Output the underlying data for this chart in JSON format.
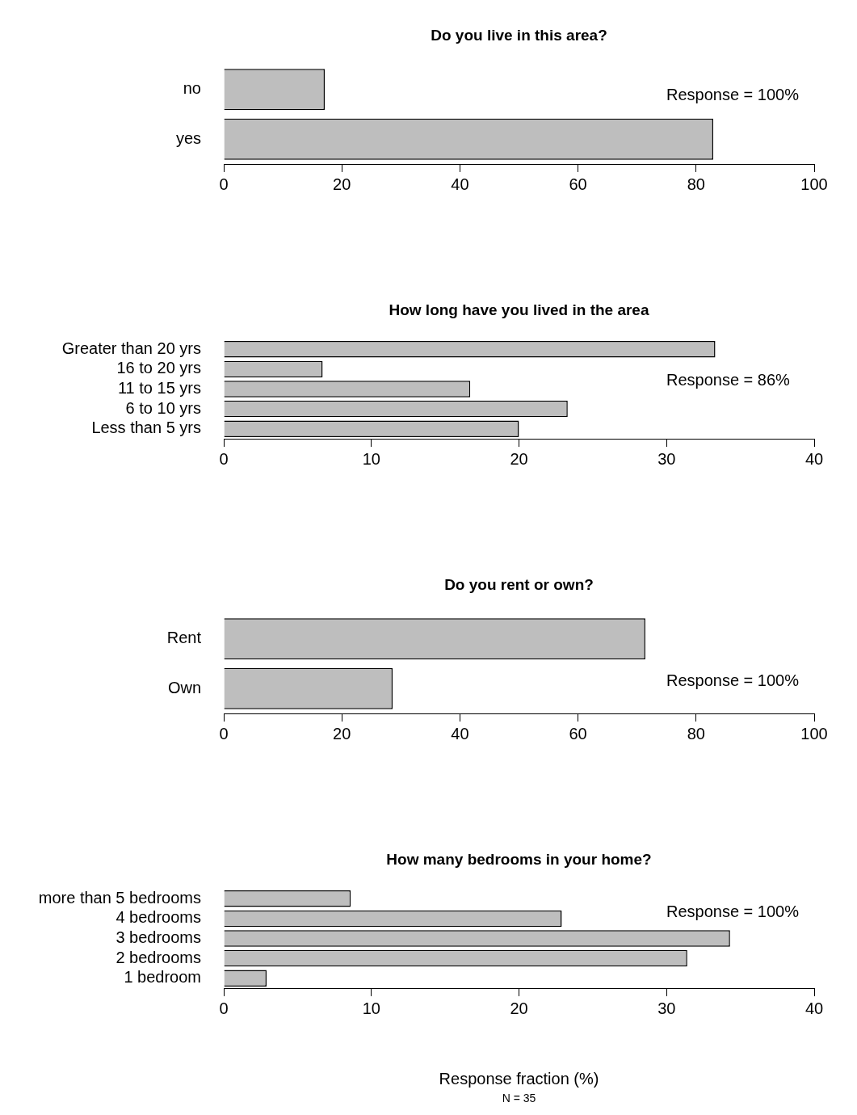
{
  "chart_data": [
    {
      "type": "bar",
      "orientation": "horizontal",
      "title": "Do you live in this area?",
      "categories": [
        "no",
        "yes"
      ],
      "values": [
        17.1,
        82.9
      ],
      "color": "#bebebe",
      "xlim": [
        0,
        100
      ],
      "xticks": [
        0,
        20,
        40,
        60,
        80,
        100
      ],
      "annotations": [
        "Response = 100%"
      ]
    },
    {
      "type": "bar",
      "orientation": "horizontal",
      "title": "How long have you lived in the area",
      "categories": [
        "Greater than 20 yrs",
        "16 to 20 yrs",
        "11 to 15 yrs",
        "6 to 10 yrs",
        "Less than 5 yrs"
      ],
      "values": [
        33.3,
        6.7,
        16.7,
        23.3,
        20.0
      ],
      "color": "#bebebe",
      "xlim": [
        0,
        40
      ],
      "xticks": [
        0,
        10,
        20,
        30,
        40
      ],
      "annotations": [
        "Response = 86%"
      ]
    },
    {
      "type": "bar",
      "orientation": "horizontal",
      "title": "Do you rent or own?",
      "categories": [
        "Rent",
        "Own"
      ],
      "values": [
        71.4,
        28.6
      ],
      "color": "#bebebe",
      "xlim": [
        0,
        100
      ],
      "xticks": [
        0,
        20,
        40,
        60,
        80,
        100
      ],
      "annotations": [
        "Response = 100%"
      ]
    },
    {
      "type": "bar",
      "orientation": "horizontal",
      "title": "How many bedrooms in your home?",
      "categories": [
        "more than 5 bedrooms",
        "4 bedrooms",
        "3 bedrooms",
        "2 bedrooms",
        "1 bedroom"
      ],
      "values": [
        8.6,
        22.9,
        34.3,
        31.4,
        2.9
      ],
      "color": "#bebebe",
      "xlim": [
        0,
        40
      ],
      "xticks": [
        0,
        10,
        20,
        30,
        40
      ],
      "xlabel": "Response fraction (%)",
      "annotations": [
        "Response = 100%",
        "N = 35"
      ]
    }
  ]
}
